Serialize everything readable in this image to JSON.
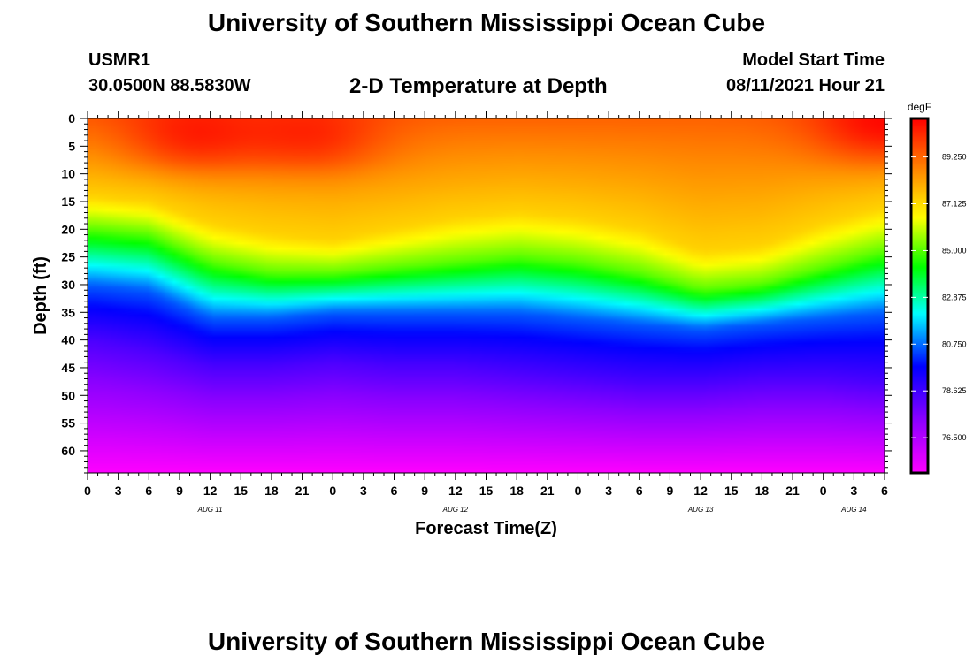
{
  "header": {
    "title": "University of Southern Mississippi Ocean Cube",
    "station": "USMR1",
    "coords": "30.0500N  88.5830W",
    "subtitle": "2-D Temperature at Depth",
    "start_label": "Model Start Time",
    "start_value": "08/11/2021 Hour 21"
  },
  "footer": {
    "title": "University of Southern Mississippi Ocean Cube"
  },
  "chart_data": {
    "type": "heatmap",
    "title": "2-D Temperature at Depth",
    "xlabel": "Forecast Time(Z)",
    "ylabel": "Depth (ft)",
    "x_range_hours": [
      0,
      78
    ],
    "y_range_ft": [
      0,
      64
    ],
    "x_tick_labels": [
      "0",
      "3",
      "6",
      "9",
      "12",
      "15",
      "18",
      "21",
      "0",
      "3",
      "6",
      "9",
      "12",
      "15",
      "18",
      "21",
      "0",
      "3",
      "6",
      "9",
      "12",
      "15",
      "18",
      "21",
      "0",
      "3",
      "6"
    ],
    "y_tick_labels": [
      "0",
      "5",
      "10",
      "15",
      "20",
      "25",
      "30",
      "35",
      "40",
      "45",
      "50",
      "55",
      "60"
    ],
    "date_labels": [
      {
        "label": "AUG 11",
        "hour": 12
      },
      {
        "label": "AUG 12",
        "hour": 36
      },
      {
        "label": "AUG 13",
        "hour": 60
      },
      {
        "label": "AUG 14",
        "hour": 75
      }
    ],
    "colorbar": {
      "unit": "degF",
      "min": 74.9,
      "max": 91.0,
      "tick_labels": [
        "89.250",
        "87.125",
        "85.000",
        "82.875",
        "80.750",
        "78.625",
        "76.500"
      ]
    },
    "isotherm_depths": {
      "hours": [
        0,
        6,
        12,
        18,
        24,
        30,
        36,
        42,
        48,
        54,
        60,
        66,
        72,
        78
      ],
      "t87_ft": [
        14,
        15,
        19,
        21,
        22,
        20,
        18,
        17,
        18,
        20,
        24,
        23,
        19,
        16
      ],
      "t85_ft": [
        20,
        21,
        26,
        28,
        28,
        27,
        26,
        25,
        26,
        28,
        31,
        30,
        27,
        24
      ],
      "t80_ft": [
        30,
        31,
        36,
        36,
        35,
        35,
        35,
        35,
        36,
        37,
        38,
        37,
        36,
        35
      ],
      "t78_ft": [
        40,
        42,
        45,
        45,
        44,
        45,
        45,
        46,
        47,
        48,
        48,
        47,
        47,
        48
      ]
    },
    "hot_spots": [
      {
        "hour": 10,
        "depth_ft": 4,
        "temp": 90.8
      },
      {
        "hour": 22,
        "depth_ft": 4,
        "temp": 90.6
      },
      {
        "hour": 78,
        "depth_ft": 2,
        "temp": 91.0
      }
    ]
  }
}
